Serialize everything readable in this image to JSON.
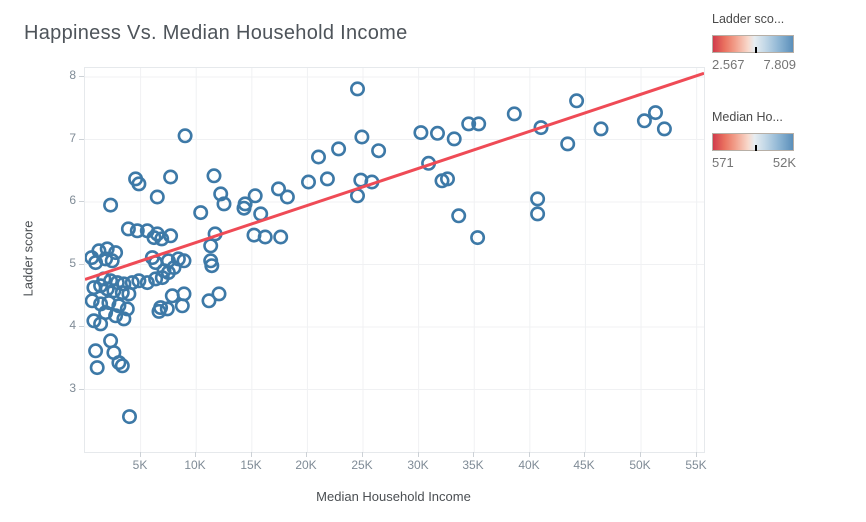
{
  "title": "Happiness Vs. Median Household Income",
  "colors": {
    "point_stroke": "#3d79a7",
    "trend_line": "#ef4b56",
    "gridline": "#f0f1f3",
    "plot_border": "#e6e9ec",
    "tick_label": "#7f8b96",
    "axis_title": "#4b4f53"
  },
  "legend": {
    "ladder": {
      "title": "Ladder sco...",
      "min": "2.567",
      "max": "7.809",
      "tick_pct": 52
    },
    "income": {
      "title": "Median Ho...",
      "min": "571",
      "max": "52K",
      "tick_pct": 52
    }
  },
  "chart_data": {
    "type": "scatter",
    "title": "Happiness Vs. Median Household Income",
    "xlabel": "Median Household Income",
    "ylabel": "Ladder score",
    "income_units": "thousands of dollars",
    "xlim": [
      0,
      55.66
    ],
    "ylim": [
      2.0,
      8.144
    ],
    "grid": true,
    "x_ticks": {
      "values": [
        5,
        10,
        15,
        20,
        25,
        30,
        35,
        40,
        45,
        50,
        55
      ],
      "labels": [
        "5K",
        "10K",
        "15K",
        "20K",
        "25K",
        "30K",
        "35K",
        "40K",
        "45K",
        "50K",
        "55K"
      ]
    },
    "y_ticks": {
      "values": [
        8,
        7,
        6,
        5,
        4,
        3
      ],
      "labels": [
        "8",
        "7",
        "6",
        "5",
        "4",
        "3"
      ]
    },
    "trend_line": {
      "x1": 0,
      "y1": 4.76,
      "x2": 55.66,
      "y2": 8.06
    },
    "points": [
      [
        9.0,
        7.06
      ],
      [
        4.55,
        6.37
      ],
      [
        4.85,
        6.29
      ],
      [
        7.7,
        6.4
      ],
      [
        11.6,
        6.42
      ],
      [
        12.2,
        6.13
      ],
      [
        12.5,
        5.97
      ],
      [
        2.3,
        5.95
      ],
      [
        10.4,
        5.83
      ],
      [
        6.5,
        6.08
      ],
      [
        3.9,
        5.57
      ],
      [
        4.7,
        5.54
      ],
      [
        5.6,
        5.54
      ],
      [
        6.5,
        5.49
      ],
      [
        6.9,
        5.41
      ],
      [
        6.2,
        5.43
      ],
      [
        7.7,
        5.46
      ],
      [
        1.25,
        5.22
      ],
      [
        2.0,
        5.25
      ],
      [
        2.75,
        5.19
      ],
      [
        1.85,
        5.09
      ],
      [
        2.45,
        5.06
      ],
      [
        0.95,
        5.03
      ],
      [
        0.6,
        5.11
      ],
      [
        6.05,
        5.11
      ],
      [
        6.35,
        5.03
      ],
      [
        7.5,
        5.06
      ],
      [
        8.4,
        5.09
      ],
      [
        8.9,
        5.06
      ],
      [
        8.0,
        4.95
      ],
      [
        7.1,
        4.9
      ],
      [
        7.5,
        4.87
      ],
      [
        1.7,
        4.77
      ],
      [
        2.3,
        4.74
      ],
      [
        2.9,
        4.71
      ],
      [
        3.5,
        4.69
      ],
      [
        4.25,
        4.71
      ],
      [
        4.85,
        4.74
      ],
      [
        5.6,
        4.71
      ],
      [
        1.4,
        4.66
      ],
      [
        0.8,
        4.63
      ],
      [
        2.0,
        4.61
      ],
      [
        2.6,
        4.58
      ],
      [
        3.35,
        4.55
      ],
      [
        3.95,
        4.53
      ],
      [
        6.35,
        4.77
      ],
      [
        6.95,
        4.79
      ],
      [
        7.85,
        4.5
      ],
      [
        8.75,
        4.34
      ],
      [
        6.8,
        4.31
      ],
      [
        7.4,
        4.29
      ],
      [
        0.65,
        4.42
      ],
      [
        1.4,
        4.37
      ],
      [
        2.15,
        4.39
      ],
      [
        3.05,
        4.34
      ],
      [
        3.8,
        4.29
      ],
      [
        1.85,
        4.23
      ],
      [
        2.75,
        4.18
      ],
      [
        3.5,
        4.13
      ],
      [
        0.8,
        4.1
      ],
      [
        1.4,
        4.05
      ],
      [
        6.65,
        4.25
      ],
      [
        8.9,
        4.53
      ],
      [
        11.15,
        4.42
      ],
      [
        12.05,
        4.53
      ],
      [
        2.3,
        3.78
      ],
      [
        0.95,
        3.62
      ],
      [
        2.6,
        3.59
      ],
      [
        3.05,
        3.43
      ],
      [
        3.35,
        3.38
      ],
      [
        1.1,
        3.35
      ],
      [
        4.0,
        2.567
      ],
      [
        11.3,
        5.3
      ],
      [
        11.3,
        5.06
      ],
      [
        11.4,
        4.98
      ],
      [
        11.7,
        5.49
      ],
      [
        14.3,
        5.9
      ],
      [
        14.4,
        5.97
      ],
      [
        15.3,
        6.1
      ],
      [
        15.8,
        5.81
      ],
      [
        15.2,
        5.47
      ],
      [
        16.2,
        5.44
      ],
      [
        17.6,
        5.44
      ],
      [
        17.4,
        6.21
      ],
      [
        18.2,
        6.08
      ],
      [
        20.1,
        6.32
      ],
      [
        21.8,
        6.37
      ],
      [
        21.0,
        6.72
      ],
      [
        22.8,
        6.85
      ],
      [
        24.5,
        7.809
      ],
      [
        24.9,
        7.04
      ],
      [
        24.8,
        6.35
      ],
      [
        25.8,
        6.32
      ],
      [
        24.5,
        6.1
      ],
      [
        26.4,
        6.82
      ],
      [
        30.2,
        7.11
      ],
      [
        31.7,
        7.1
      ],
      [
        33.2,
        7.01
      ],
      [
        34.5,
        7.25
      ],
      [
        35.4,
        7.25
      ],
      [
        30.9,
        6.62
      ],
      [
        32.1,
        6.34
      ],
      [
        32.6,
        6.37
      ],
      [
        33.6,
        5.78
      ],
      [
        35.3,
        5.43
      ],
      [
        38.6,
        7.41
      ],
      [
        41.0,
        7.19
      ],
      [
        40.7,
        6.05
      ],
      [
        40.7,
        5.81
      ],
      [
        43.4,
        6.93
      ],
      [
        44.2,
        7.62
      ],
      [
        46.4,
        7.17
      ],
      [
        50.3,
        7.3
      ],
      [
        51.3,
        7.43
      ],
      [
        52.1,
        7.17
      ]
    ]
  }
}
